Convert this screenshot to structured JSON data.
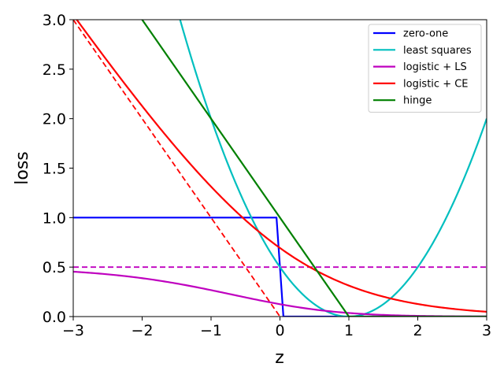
{
  "chart_data": {
    "type": "line",
    "title": "",
    "xlabel": "z",
    "ylabel": "loss",
    "xlim": [
      -3,
      3
    ],
    "ylim": [
      0,
      3
    ],
    "xticks": [
      -3,
      -2,
      -1,
      0,
      1,
      2,
      3
    ],
    "yticks": [
      0.0,
      0.5,
      1.0,
      1.5,
      2.0,
      2.5,
      3.0
    ],
    "xtick_labels": [
      "−3",
      "−2",
      "−1",
      "0",
      "1",
      "2",
      "3"
    ],
    "ytick_labels": [
      "0.0",
      "0.5",
      "1.0",
      "1.5",
      "2.0",
      "2.5",
      "3.0"
    ],
    "grid": false,
    "legend_position": "top-right",
    "series": [
      {
        "name": "zero-one",
        "color": "#0000ff",
        "style": "solid",
        "x": [
          -3,
          -0.05,
          0.05,
          3
        ],
        "y": [
          1,
          1,
          0,
          0
        ]
      },
      {
        "name": "least squares",
        "color": "#00bfbf",
        "style": "solid",
        "x": [
          -1.45,
          -1.2,
          -1.0,
          -0.75,
          -0.5,
          -0.25,
          0,
          0.25,
          0.5,
          0.75,
          1.0,
          1.25,
          1.5,
          1.75,
          2.0,
          2.25,
          2.5,
          2.75,
          3.0
        ],
        "y": [
          3.0,
          2.42,
          2.0,
          1.53,
          1.13,
          0.78,
          0.5,
          0.28,
          0.13,
          0.03,
          0.0,
          0.03,
          0.13,
          0.28,
          0.5,
          0.78,
          1.13,
          1.53,
          2.0
        ]
      },
      {
        "name": "logistic + LS",
        "color": "#bf00bf",
        "style": "solid",
        "x": [
          -3,
          -2.5,
          -2,
          -1.5,
          -1,
          -0.5,
          0,
          0.5,
          1,
          1.5,
          2,
          2.5,
          3
        ],
        "y": [
          0.453,
          0.424,
          0.388,
          0.335,
          0.267,
          0.189,
          0.125,
          0.072,
          0.036,
          0.017,
          0.007,
          0.003,
          0.001
        ]
      },
      {
        "name": "logistic + CE",
        "color": "#ff0000",
        "style": "solid",
        "x": [
          -3,
          -2.5,
          -2,
          -1.5,
          -1,
          -0.5,
          0,
          0.5,
          1,
          1.5,
          2,
          2.5,
          3
        ],
        "y": [
          3.049,
          2.579,
          2.127,
          1.701,
          1.313,
          0.974,
          0.693,
          0.474,
          0.313,
          0.201,
          0.127,
          0.079,
          0.049
        ]
      },
      {
        "name": "hinge",
        "color": "#008000",
        "style": "solid",
        "x": [
          -2,
          1,
          3
        ],
        "y": [
          3,
          0,
          0
        ]
      }
    ],
    "reference_lines": [
      {
        "color": "#bf00bf",
        "style": "dashed",
        "x": [
          -3,
          3
        ],
        "y": [
          0.5,
          0.5
        ]
      },
      {
        "color": "#ff0000",
        "style": "dashed",
        "x": [
          -3,
          0
        ],
        "y": [
          3,
          0
        ]
      }
    ]
  }
}
